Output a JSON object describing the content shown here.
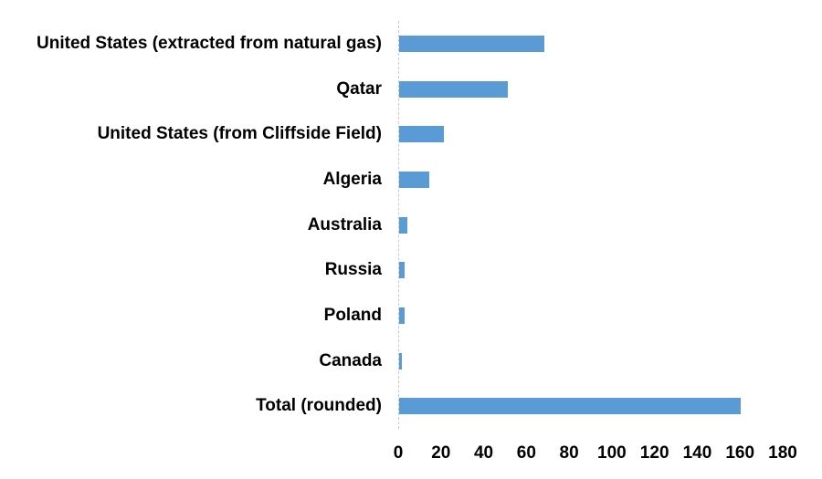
{
  "chart_data": {
    "type": "bar",
    "orientation": "horizontal",
    "title": "",
    "xlabel": "",
    "ylabel": "",
    "categories": [
      "United States (extracted from natural gas)",
      "Qatar",
      "United States (from Cliffside Field)",
      "Algeria",
      "Australia",
      "Russia",
      "Poland",
      "Canada",
      "Total (rounded)"
    ],
    "values": [
      68,
      51,
      21,
      14,
      4,
      2.5,
      2.5,
      1.3,
      160
    ],
    "xlim": [
      0,
      180
    ],
    "xticks": [
      0,
      20,
      40,
      60,
      80,
      100,
      120,
      140,
      160,
      180
    ],
    "grid": false,
    "legend": false,
    "bar_color": "#5B9BD5",
    "axis_line_color": "#C9C9C9",
    "text_color": "#000000"
  }
}
